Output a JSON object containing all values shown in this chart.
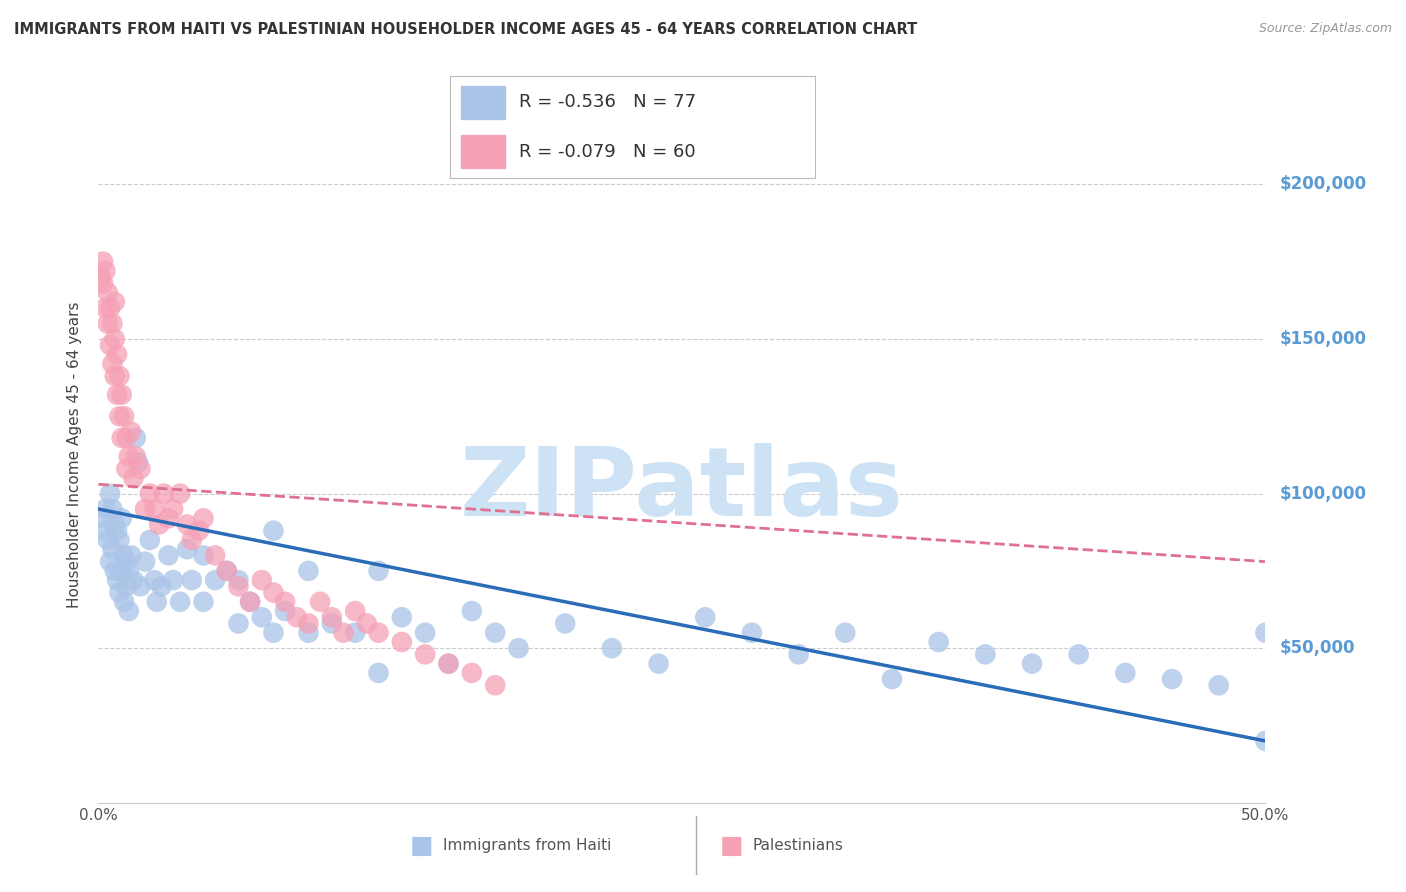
{
  "title": "IMMIGRANTS FROM HAITI VS PALESTINIAN HOUSEHOLDER INCOME AGES 45 - 64 YEARS CORRELATION CHART",
  "source": "Source: ZipAtlas.com",
  "ylabel": "Householder Income Ages 45 - 64 years",
  "ytick_labels": [
    "$50,000",
    "$100,000",
    "$150,000",
    "$200,000"
  ],
  "ytick_values": [
    50000,
    100000,
    150000,
    200000
  ],
  "ymin": 0,
  "ymax": 225000,
  "xmin": 0.0,
  "xmax": 0.5,
  "haiti_R": -0.536,
  "haiti_N": 77,
  "haiti_color": "#aac4e8",
  "haiti_line_color": "#2b6cb8",
  "palestinian_R": -0.079,
  "palestinian_N": 60,
  "palestinian_color": "#f5a0b5",
  "palestinian_line_color": "#e07090",
  "watermark": "ZIPatlas",
  "watermark_color": "#cde3f5",
  "background_color": "#ffffff",
  "grid_color": "#cccccc",
  "title_color": "#333333",
  "haiti_x": [
    0.002,
    0.003,
    0.003,
    0.004,
    0.005,
    0.005,
    0.006,
    0.006,
    0.007,
    0.007,
    0.008,
    0.008,
    0.009,
    0.009,
    0.01,
    0.01,
    0.011,
    0.011,
    0.012,
    0.012,
    0.013,
    0.013,
    0.014,
    0.015,
    0.016,
    0.017,
    0.018,
    0.02,
    0.022,
    0.024,
    0.025,
    0.027,
    0.03,
    0.032,
    0.035,
    0.038,
    0.04,
    0.045,
    0.05,
    0.055,
    0.06,
    0.065,
    0.07,
    0.075,
    0.08,
    0.09,
    0.1,
    0.11,
    0.12,
    0.13,
    0.14,
    0.15,
    0.16,
    0.17,
    0.18,
    0.2,
    0.22,
    0.24,
    0.26,
    0.28,
    0.3,
    0.32,
    0.34,
    0.36,
    0.38,
    0.4,
    0.42,
    0.44,
    0.46,
    0.48,
    0.5,
    0.5,
    0.12,
    0.09,
    0.075,
    0.06,
    0.045
  ],
  "haiti_y": [
    92000,
    88000,
    95000,
    85000,
    100000,
    78000,
    95000,
    82000,
    90000,
    75000,
    88000,
    72000,
    85000,
    68000,
    92000,
    75000,
    80000,
    65000,
    78000,
    70000,
    75000,
    62000,
    80000,
    72000,
    118000,
    110000,
    70000,
    78000,
    85000,
    72000,
    65000,
    70000,
    80000,
    72000,
    65000,
    82000,
    72000,
    65000,
    72000,
    75000,
    58000,
    65000,
    60000,
    55000,
    62000,
    55000,
    58000,
    55000,
    42000,
    60000,
    55000,
    45000,
    62000,
    55000,
    50000,
    58000,
    50000,
    45000,
    60000,
    55000,
    48000,
    55000,
    40000,
    52000,
    48000,
    45000,
    48000,
    42000,
    40000,
    38000,
    55000,
    20000,
    75000,
    75000,
    88000,
    72000,
    80000
  ],
  "palestinian_x": [
    0.001,
    0.002,
    0.002,
    0.003,
    0.003,
    0.004,
    0.004,
    0.005,
    0.005,
    0.006,
    0.006,
    0.007,
    0.007,
    0.007,
    0.008,
    0.008,
    0.009,
    0.009,
    0.01,
    0.01,
    0.011,
    0.012,
    0.012,
    0.013,
    0.014,
    0.015,
    0.016,
    0.018,
    0.02,
    0.022,
    0.024,
    0.026,
    0.028,
    0.03,
    0.032,
    0.035,
    0.038,
    0.04,
    0.043,
    0.045,
    0.05,
    0.055,
    0.06,
    0.065,
    0.07,
    0.075,
    0.08,
    0.085,
    0.09,
    0.095,
    0.1,
    0.105,
    0.11,
    0.115,
    0.12,
    0.13,
    0.14,
    0.15,
    0.16,
    0.17
  ],
  "palestinian_y": [
    170000,
    175000,
    168000,
    172000,
    160000,
    165000,
    155000,
    160000,
    148000,
    155000,
    142000,
    150000,
    162000,
    138000,
    145000,
    132000,
    138000,
    125000,
    132000,
    118000,
    125000,
    118000,
    108000,
    112000,
    120000,
    105000,
    112000,
    108000,
    95000,
    100000,
    95000,
    90000,
    100000,
    92000,
    95000,
    100000,
    90000,
    85000,
    88000,
    92000,
    80000,
    75000,
    70000,
    65000,
    72000,
    68000,
    65000,
    60000,
    58000,
    65000,
    60000,
    55000,
    62000,
    58000,
    55000,
    52000,
    48000,
    45000,
    42000,
    38000
  ],
  "haiti_trendline_x": [
    0.0,
    0.5
  ],
  "haiti_trendline_y": [
    95000,
    20000
  ],
  "pal_trendline_x": [
    0.0,
    0.5
  ],
  "pal_trendline_y": [
    103000,
    78000
  ]
}
